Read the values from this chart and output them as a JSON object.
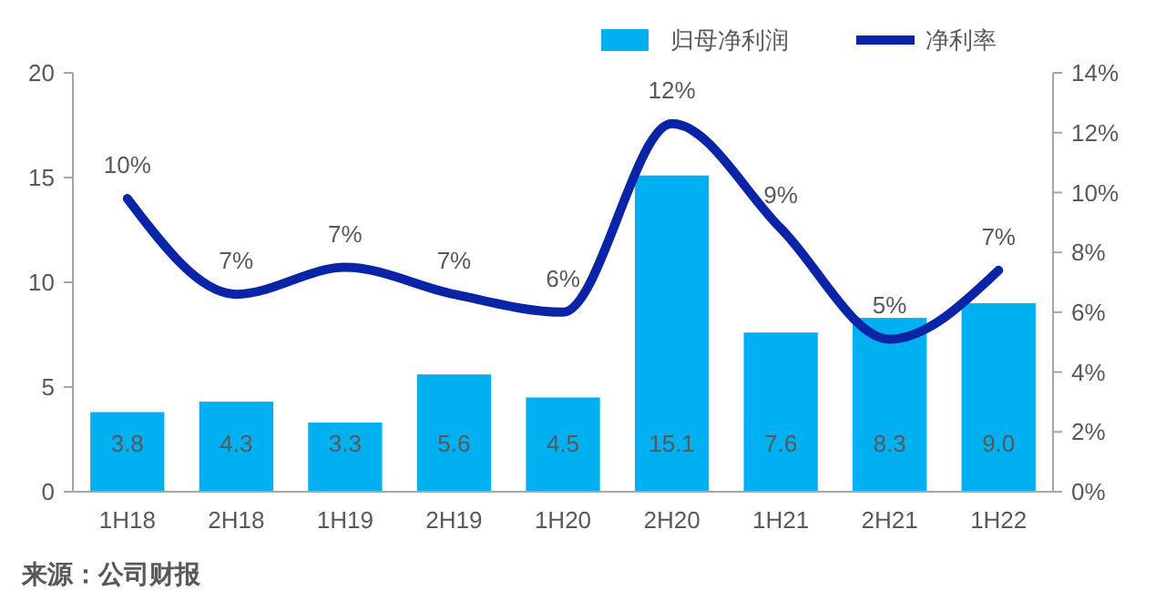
{
  "chart_data": {
    "type": "bar",
    "categories": [
      "1H18",
      "2H18",
      "1H19",
      "2H19",
      "1H20",
      "2H20",
      "1H21",
      "2H21",
      "1H22"
    ],
    "series": [
      {
        "name": "归母净利润",
        "color": "#00b0f0",
        "values": [
          3.8,
          4.3,
          3.3,
          5.6,
          4.5,
          15.1,
          7.6,
          8.3,
          9.0
        ],
        "value_labels": [
          "3.8",
          "4.3",
          "3.3",
          "5.6",
          "4.5",
          "15.1",
          "7.6",
          "8.3",
          "9.0"
        ]
      },
      {
        "name": "净利率",
        "type": "line",
        "axis": "y2",
        "color": "#0a24a8",
        "values": [
          9.8,
          6.6,
          7.5,
          6.6,
          6.0,
          12.3,
          8.8,
          5.1,
          7.4
        ],
        "value_labels": [
          "10%",
          "7%",
          "7%",
          "7%",
          "6%",
          "12%",
          "9%",
          "5%",
          "7%"
        ]
      }
    ],
    "ylim": [
      0,
      20
    ],
    "yticks": [
      0,
      5,
      10,
      15,
      20
    ],
    "y2lim": [
      0,
      14
    ],
    "y2ticks": [
      {
        "value": 0,
        "label": "0%"
      },
      {
        "value": 2,
        "label": "2%"
      },
      {
        "value": 4,
        "label": "4%"
      },
      {
        "value": 6,
        "label": "6%"
      },
      {
        "value": 8,
        "label": "8%"
      },
      {
        "value": 10,
        "label": "10%"
      },
      {
        "value": 12,
        "label": "12%"
      },
      {
        "value": 14,
        "label": "14%"
      }
    ],
    "legend": "top right",
    "grid": false,
    "marker": "none",
    "line_style": "solid",
    "annotations": [
      "来源：公司财报"
    ]
  }
}
